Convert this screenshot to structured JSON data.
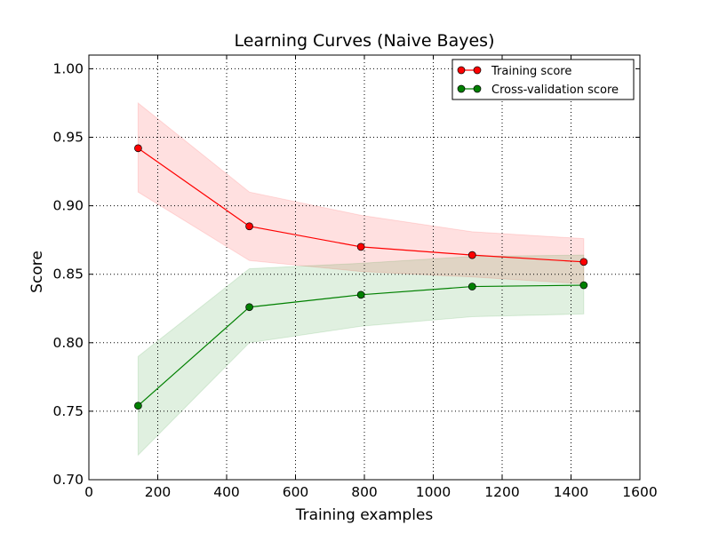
{
  "chart_data": {
    "type": "line",
    "title": "Learning Curves (Naive Bayes)",
    "xlabel": "Training examples",
    "ylabel": "Score",
    "xlim": [
      0,
      1600
    ],
    "ylim": [
      0.7,
      1.01
    ],
    "xticks": [
      0,
      200,
      400,
      600,
      800,
      1000,
      1200,
      1400,
      1600
    ],
    "yticks": [
      0.7,
      0.75,
      0.8,
      0.85,
      0.9,
      0.95,
      1.0
    ],
    "xtick_labels": [
      "0",
      "200",
      "400",
      "600",
      "800",
      "1000",
      "1200",
      "1400",
      "1600"
    ],
    "ytick_labels": [
      "0.70",
      "0.75",
      "0.80",
      "0.85",
      "0.90",
      "0.95",
      "1.00"
    ],
    "grid": true,
    "legend_position": "top-right",
    "x": [
      143,
      466,
      790,
      1113,
      1437
    ],
    "series": [
      {
        "name": "Training score",
        "color": "#ff0000",
        "fill_color": "#ff0000",
        "values": [
          0.942,
          0.885,
          0.87,
          0.864,
          0.859
        ],
        "band_lower": [
          0.91,
          0.86,
          0.852,
          0.848,
          0.843
        ],
        "band_upper": [
          0.975,
          0.91,
          0.893,
          0.881,
          0.876
        ]
      },
      {
        "name": "Cross-validation score",
        "color": "#008000",
        "fill_color": "#008000",
        "values": [
          0.754,
          0.826,
          0.835,
          0.841,
          0.842
        ],
        "band_lower": [
          0.718,
          0.8,
          0.812,
          0.819,
          0.821
        ],
        "band_upper": [
          0.79,
          0.854,
          0.858,
          0.863,
          0.864
        ]
      }
    ]
  }
}
